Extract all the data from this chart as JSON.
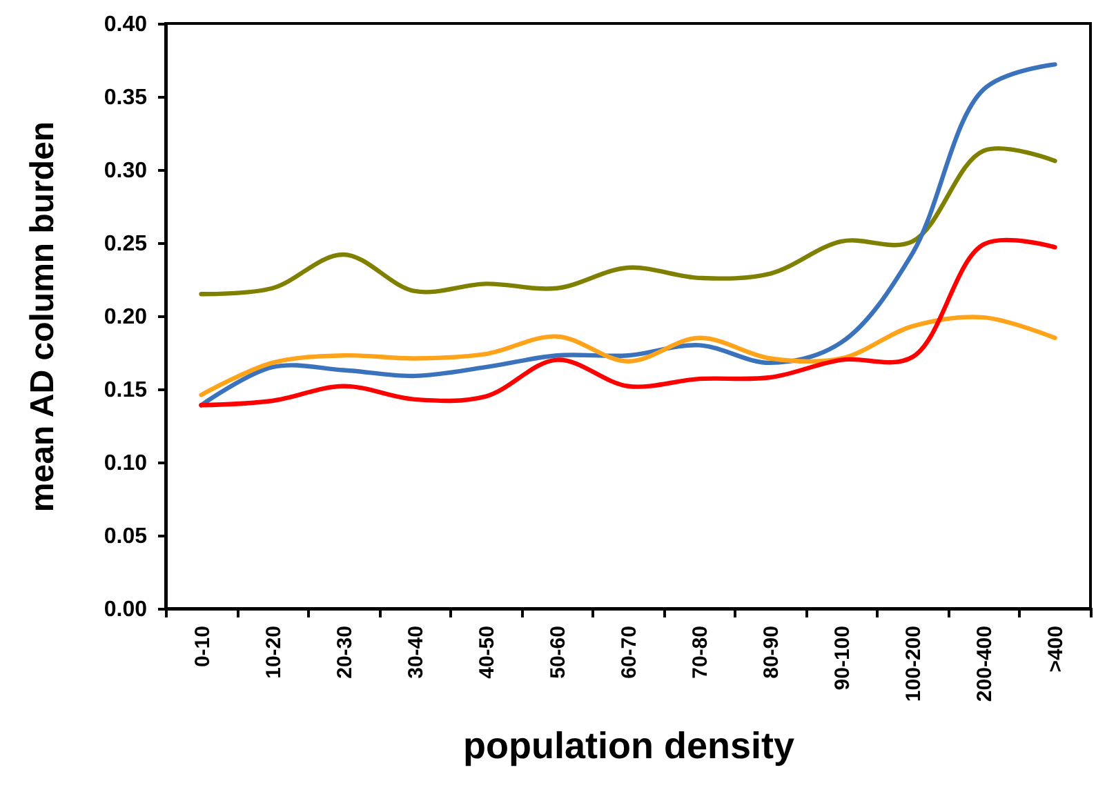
{
  "chart_data": {
    "type": "line",
    "xlabel": "population density",
    "ylabel": "mean AD column burden",
    "categories": [
      "0-10",
      "10-20",
      "20-30",
      "30-40",
      "40-50",
      "50-60",
      "60-70",
      "70-80",
      "80-90",
      "90-100",
      "100-200",
      "200-400",
      ">400"
    ],
    "series": [
      {
        "color": "#808000",
        "values": [
          0.215,
          0.219,
          0.242,
          0.217,
          0.222,
          0.219,
          0.233,
          0.226,
          0.229,
          0.251,
          0.251,
          0.313,
          0.306
        ]
      },
      {
        "color": "#3a72bc",
        "values": [
          0.139,
          0.165,
          0.163,
          0.159,
          0.165,
          0.173,
          0.173,
          0.18,
          0.168,
          0.182,
          0.243,
          0.355,
          0.372
        ]
      },
      {
        "color": "#ffa31a",
        "values": [
          0.146,
          0.168,
          0.173,
          0.171,
          0.174,
          0.186,
          0.169,
          0.185,
          0.171,
          0.171,
          0.193,
          0.199,
          0.185
        ]
      },
      {
        "color": "#ff0000",
        "values": [
          0.139,
          0.142,
          0.152,
          0.143,
          0.145,
          0.17,
          0.152,
          0.157,
          0.158,
          0.17,
          0.172,
          0.249,
          0.247
        ]
      }
    ],
    "ylim": [
      0,
      0.4
    ],
    "yticks": [
      {
        "value": 0,
        "label": "0.00"
      },
      {
        "value": 0.05,
        "label": "0.05"
      },
      {
        "value": 0.1,
        "label": "0.10"
      },
      {
        "value": 0.15,
        "label": "0.15"
      },
      {
        "value": 0.2,
        "label": "0.20"
      },
      {
        "value": 0.25,
        "label": "0.25"
      },
      {
        "value": 0.3,
        "label": "0.30"
      },
      {
        "value": 0.35,
        "label": "0.35"
      },
      {
        "value": 0.4,
        "label": "0.40"
      }
    ],
    "grid": false
  }
}
